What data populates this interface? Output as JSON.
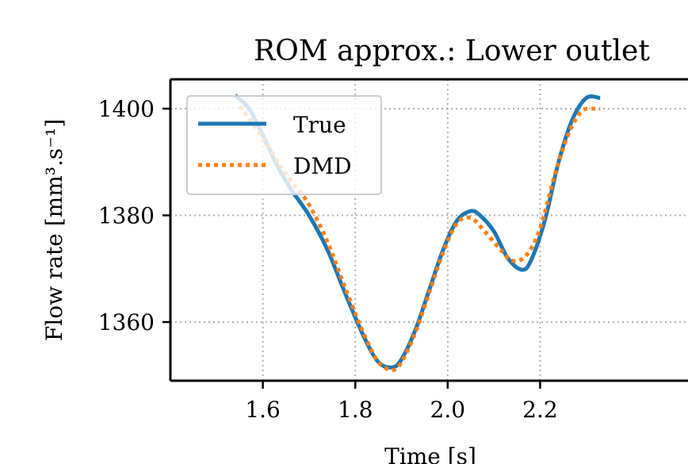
{
  "chart_data": {
    "type": "line",
    "title": "ROM approx.: Lower outlet",
    "xlabel": "Time [s]",
    "ylabel": "Flow rate [mm³.s⁻¹]",
    "xlim": [
      1.4,
      2.52
    ],
    "ylim": [
      1349,
      1405.5
    ],
    "xticks": [
      1.6,
      1.8,
      2.0,
      2.2
    ],
    "xtick_labels": [
      "1.6",
      "1.8",
      "2.0",
      "2.2"
    ],
    "yticks": [
      1360,
      1380,
      1400
    ],
    "ytick_labels": [
      "1360",
      "1380",
      "1400"
    ],
    "grid": true,
    "legend_position": "top-left",
    "series": [
      {
        "name": "True",
        "color": "#1f77b4",
        "style": "solid",
        "x": [
          1.54,
          1.57,
          1.6,
          1.63,
          1.66,
          1.7,
          1.74,
          1.78,
          1.82,
          1.85,
          1.88,
          1.9,
          1.93,
          1.96,
          1.99,
          2.02,
          2.05,
          2.07,
          2.1,
          2.13,
          2.16,
          2.18,
          2.21,
          2.24,
          2.27,
          2.3,
          2.33
        ],
        "y": [
          1402.5,
          1400.0,
          1395.0,
          1389.5,
          1385.0,
          1380.0,
          1373.5,
          1365.0,
          1357.0,
          1352.5,
          1351.5,
          1353.0,
          1358.5,
          1366.0,
          1373.5,
          1379.0,
          1380.8,
          1380.0,
          1377.0,
          1372.0,
          1369.8,
          1371.5,
          1379.0,
          1390.0,
          1398.0,
          1402.0,
          1402.0
        ]
      },
      {
        "name": "DMD",
        "color": "#ff7f0e",
        "style": "dotted",
        "x": [
          1.55,
          1.58,
          1.61,
          1.64,
          1.67,
          1.7,
          1.74,
          1.78,
          1.82,
          1.85,
          1.88,
          1.9,
          1.93,
          1.96,
          1.99,
          2.02,
          2.05,
          2.08,
          2.11,
          2.14,
          2.17,
          2.2,
          2.23,
          2.26,
          2.29,
          2.32,
          2.33
        ],
        "y": [
          1400.5,
          1397.0,
          1393.0,
          1389.0,
          1385.5,
          1382.0,
          1375.0,
          1366.0,
          1357.5,
          1352.5,
          1351.0,
          1352.5,
          1358.0,
          1365.5,
          1373.0,
          1378.5,
          1379.5,
          1377.0,
          1374.0,
          1371.5,
          1372.5,
          1377.5,
          1387.0,
          1395.0,
          1399.5,
          1400.0,
          1400.0
        ]
      }
    ]
  }
}
